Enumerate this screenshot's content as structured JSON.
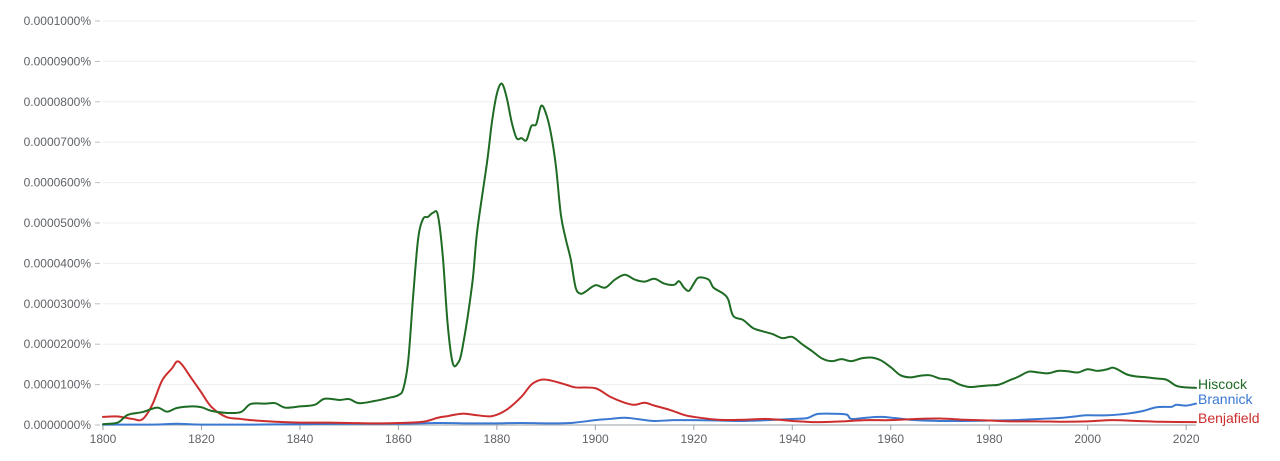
{
  "chart_data": {
    "type": "line",
    "title": "",
    "xlabel": "",
    "ylabel": "",
    "xlim": [
      1800,
      2022
    ],
    "ylim": [
      0,
      1e-06
    ],
    "grid": true,
    "legend_placement": "right, at line ends",
    "y_ticks": [
      {
        "value": 0.0,
        "label": "0.0000000%"
      },
      {
        "value": 1e-07,
        "label": "0.0000100%"
      },
      {
        "value": 2e-07,
        "label": "0.0000200%"
      },
      {
        "value": 3e-07,
        "label": "0.0000300%"
      },
      {
        "value": 4e-07,
        "label": "0.0000400%"
      },
      {
        "value": 5e-07,
        "label": "0.0000500%"
      },
      {
        "value": 6e-07,
        "label": "0.0000600%"
      },
      {
        "value": 7e-07,
        "label": "0.0000700%"
      },
      {
        "value": 8e-07,
        "label": "0.0000800%"
      },
      {
        "value": 9e-07,
        "label": "0.0000900%"
      },
      {
        "value": 1e-06,
        "label": "0.0001000%"
      }
    ],
    "x_ticks": [
      {
        "value": 1800,
        "label": "1800"
      },
      {
        "value": 1820,
        "label": "1820"
      },
      {
        "value": 1840,
        "label": "1840"
      },
      {
        "value": 1860,
        "label": "1860"
      },
      {
        "value": 1880,
        "label": "1880"
      },
      {
        "value": 1900,
        "label": "1900"
      },
      {
        "value": 1920,
        "label": "1920"
      },
      {
        "value": 1940,
        "label": "1940"
      },
      {
        "value": 1960,
        "label": "1960"
      },
      {
        "value": 1980,
        "label": "1980"
      },
      {
        "value": 2000,
        "label": "2000"
      },
      {
        "value": 2020,
        "label": "2020"
      }
    ],
    "series": [
      {
        "name": "Hiscock",
        "color": "#1e6b24",
        "points": [
          [
            1800,
            2e-09
          ],
          [
            1803,
            6e-09
          ],
          [
            1805,
            2.5e-08
          ],
          [
            1808,
            3.2e-08
          ],
          [
            1811,
            4.3e-08
          ],
          [
            1813,
            3.3e-08
          ],
          [
            1815,
            4.2e-08
          ],
          [
            1818,
            4.6e-08
          ],
          [
            1820,
            4.4e-08
          ],
          [
            1822,
            3.5e-08
          ],
          [
            1825,
            3e-08
          ],
          [
            1828,
            3.2e-08
          ],
          [
            1830,
            5.2e-08
          ],
          [
            1833,
            5.3e-08
          ],
          [
            1835,
            5.4e-08
          ],
          [
            1837,
            4.3e-08
          ],
          [
            1840,
            4.6e-08
          ],
          [
            1843,
            5e-08
          ],
          [
            1845,
            6.5e-08
          ],
          [
            1848,
            6.2e-08
          ],
          [
            1850,
            6.4e-08
          ],
          [
            1852,
            5.4e-08
          ],
          [
            1855,
            5.9e-08
          ],
          [
            1858,
            6.7e-08
          ],
          [
            1860,
            7.4e-08
          ],
          [
            1861,
            9e-08
          ],
          [
            1862,
            1.6e-07
          ],
          [
            1863,
            3.2e-07
          ],
          [
            1864,
            4.6e-07
          ],
          [
            1865,
            5.1e-07
          ],
          [
            1866,
            5.15e-07
          ],
          [
            1867,
            5.25e-07
          ],
          [
            1868,
            5.2e-07
          ],
          [
            1869,
            4.2e-07
          ],
          [
            1870,
            2.5e-07
          ],
          [
            1871,
            1.55e-07
          ],
          [
            1872,
            1.52e-07
          ],
          [
            1873,
            1.9e-07
          ],
          [
            1875,
            3.5e-07
          ],
          [
            1876,
            4.8e-07
          ],
          [
            1878,
            6.5e-07
          ],
          [
            1879,
            7.5e-07
          ],
          [
            1880,
            8.2e-07
          ],
          [
            1881,
            8.45e-07
          ],
          [
            1882,
            8.1e-07
          ],
          [
            1883,
            7.5e-07
          ],
          [
            1884,
            7.1e-07
          ],
          [
            1885,
            7.1e-07
          ],
          [
            1886,
            7.05e-07
          ],
          [
            1887,
            7.4e-07
          ],
          [
            1888,
            7.45e-07
          ],
          [
            1889,
            7.9e-07
          ],
          [
            1890,
            7.7e-07
          ],
          [
            1891,
            7.2e-07
          ],
          [
            1892,
            6.4e-07
          ],
          [
            1893,
            5.2e-07
          ],
          [
            1894,
            4.6e-07
          ],
          [
            1895,
            4.1e-07
          ],
          [
            1896,
            3.4e-07
          ],
          [
            1897,
            3.25e-07
          ],
          [
            1898,
            3.3e-07
          ],
          [
            1900,
            3.46e-07
          ],
          [
            1902,
            3.4e-07
          ],
          [
            1904,
            3.6e-07
          ],
          [
            1906,
            3.72e-07
          ],
          [
            1908,
            3.6e-07
          ],
          [
            1910,
            3.55e-07
          ],
          [
            1912,
            3.62e-07
          ],
          [
            1914,
            3.5e-07
          ],
          [
            1916,
            3.47e-07
          ],
          [
            1917,
            3.56e-07
          ],
          [
            1918,
            3.4e-07
          ],
          [
            1919,
            3.32e-07
          ],
          [
            1920,
            3.5e-07
          ],
          [
            1921,
            3.65e-07
          ],
          [
            1923,
            3.6e-07
          ],
          [
            1924,
            3.4e-07
          ],
          [
            1926,
            3.25e-07
          ],
          [
            1927,
            3.1e-07
          ],
          [
            1928,
            2.7e-07
          ],
          [
            1930,
            2.6e-07
          ],
          [
            1932,
            2.4e-07
          ],
          [
            1934,
            2.32e-07
          ],
          [
            1936,
            2.25e-07
          ],
          [
            1938,
            2.15e-07
          ],
          [
            1940,
            2.18e-07
          ],
          [
            1942,
            2e-07
          ],
          [
            1944,
            1.83e-07
          ],
          [
            1946,
            1.65e-07
          ],
          [
            1948,
            1.58e-07
          ],
          [
            1950,
            1.63e-07
          ],
          [
            1952,
            1.58e-07
          ],
          [
            1954,
            1.65e-07
          ],
          [
            1956,
            1.67e-07
          ],
          [
            1958,
            1.6e-07
          ],
          [
            1960,
            1.43e-07
          ],
          [
            1962,
            1.23e-07
          ],
          [
            1964,
            1.18e-07
          ],
          [
            1966,
            1.22e-07
          ],
          [
            1968,
            1.23e-07
          ],
          [
            1970,
            1.15e-07
          ],
          [
            1972,
            1.12e-07
          ],
          [
            1974,
            1e-07
          ],
          [
            1976,
            9.4e-08
          ],
          [
            1978,
            9.6e-08
          ],
          [
            1980,
            9.8e-08
          ],
          [
            1982,
            1e-07
          ],
          [
            1984,
            1.1e-07
          ],
          [
            1986,
            1.2e-07
          ],
          [
            1988,
            1.32e-07
          ],
          [
            1990,
            1.3e-07
          ],
          [
            1992,
            1.28e-07
          ],
          [
            1994,
            1.34e-07
          ],
          [
            1996,
            1.33e-07
          ],
          [
            1998,
            1.3e-07
          ],
          [
            2000,
            1.38e-07
          ],
          [
            2002,
            1.34e-07
          ],
          [
            2004,
            1.38e-07
          ],
          [
            2005,
            1.42e-07
          ],
          [
            2006,
            1.38e-07
          ],
          [
            2008,
            1.25e-07
          ],
          [
            2010,
            1.2e-07
          ],
          [
            2012,
            1.18e-07
          ],
          [
            2014,
            1.15e-07
          ],
          [
            2016,
            1.12e-07
          ],
          [
            2018,
            9.7e-08
          ],
          [
            2020,
            9.3e-08
          ],
          [
            2022,
            9.2e-08
          ]
        ]
      },
      {
        "name": "Brannick",
        "color": "#3a78d1",
        "points": [
          [
            1800,
            1e-09
          ],
          [
            1810,
            1e-09
          ],
          [
            1815,
            3e-09
          ],
          [
            1820,
            1e-09
          ],
          [
            1830,
            1e-09
          ],
          [
            1840,
            2e-09
          ],
          [
            1850,
            3e-09
          ],
          [
            1860,
            3e-09
          ],
          [
            1868,
            5e-09
          ],
          [
            1875,
            4e-09
          ],
          [
            1880,
            4e-09
          ],
          [
            1885,
            5e-09
          ],
          [
            1890,
            4e-09
          ],
          [
            1895,
            5e-09
          ],
          [
            1900,
            1.2e-08
          ],
          [
            1903,
            1.5e-08
          ],
          [
            1906,
            1.8e-08
          ],
          [
            1909,
            1.4e-08
          ],
          [
            1912,
            1e-08
          ],
          [
            1916,
            1.2e-08
          ],
          [
            1920,
            1.2e-08
          ],
          [
            1925,
            1.1e-08
          ],
          [
            1930,
            1e-08
          ],
          [
            1935,
            1.2e-08
          ],
          [
            1940,
            1.5e-08
          ],
          [
            1943,
            1.7e-08
          ],
          [
            1945,
            2.7e-08
          ],
          [
            1948,
            2.8e-08
          ],
          [
            1951,
            2.6e-08
          ],
          [
            1952,
            1.5e-08
          ],
          [
            1955,
            1.8e-08
          ],
          [
            1958,
            2e-08
          ],
          [
            1961,
            1.7e-08
          ],
          [
            1965,
            1.2e-08
          ],
          [
            1970,
            1e-08
          ],
          [
            1975,
            1e-08
          ],
          [
            1980,
            1.1e-08
          ],
          [
            1985,
            1.2e-08
          ],
          [
            1990,
            1.5e-08
          ],
          [
            1995,
            1.8e-08
          ],
          [
            1998,
            2.2e-08
          ],
          [
            2000,
            2.4e-08
          ],
          [
            2004,
            2.4e-08
          ],
          [
            2008,
            2.8e-08
          ],
          [
            2011,
            3.4e-08
          ],
          [
            2014,
            4.4e-08
          ],
          [
            2017,
            4.5e-08
          ],
          [
            2018,
            5e-08
          ],
          [
            2020,
            4.8e-08
          ],
          [
            2022,
            5.3e-08
          ]
        ]
      },
      {
        "name": "Benjafield",
        "color": "#cc2d2d",
        "points": [
          [
            1800,
            2e-08
          ],
          [
            1803,
            2.1e-08
          ],
          [
            1806,
            1.5e-08
          ],
          [
            1808,
            1.4e-08
          ],
          [
            1810,
            5e-08
          ],
          [
            1812,
            1.1e-07
          ],
          [
            1814,
            1.4e-07
          ],
          [
            1815,
            1.57e-07
          ],
          [
            1816,
            1.5e-07
          ],
          [
            1818,
            1.15e-07
          ],
          [
            1820,
            8e-08
          ],
          [
            1822,
            4.5e-08
          ],
          [
            1825,
            2e-08
          ],
          [
            1828,
            1.5e-08
          ],
          [
            1830,
            1.2e-08
          ],
          [
            1835,
            8e-09
          ],
          [
            1840,
            6e-09
          ],
          [
            1845,
            6e-09
          ],
          [
            1850,
            5e-09
          ],
          [
            1855,
            4e-09
          ],
          [
            1860,
            5e-09
          ],
          [
            1865,
            8e-09
          ],
          [
            1868,
            1.8e-08
          ],
          [
            1870,
            2.2e-08
          ],
          [
            1873,
            2.8e-08
          ],
          [
            1876,
            2.4e-08
          ],
          [
            1879,
            2.2e-08
          ],
          [
            1882,
            3.8e-08
          ],
          [
            1885,
            7e-08
          ],
          [
            1887,
            1e-07
          ],
          [
            1889,
            1.12e-07
          ],
          [
            1891,
            1.1e-07
          ],
          [
            1894,
            1e-07
          ],
          [
            1896,
            9.3e-08
          ],
          [
            1900,
            9.1e-08
          ],
          [
            1903,
            7e-08
          ],
          [
            1906,
            5.5e-08
          ],
          [
            1908,
            5e-08
          ],
          [
            1910,
            5.5e-08
          ],
          [
            1912,
            4.8e-08
          ],
          [
            1915,
            3.8e-08
          ],
          [
            1918,
            2.5e-08
          ],
          [
            1920,
            2e-08
          ],
          [
            1925,
            1.3e-08
          ],
          [
            1930,
            1.3e-08
          ],
          [
            1935,
            1.5e-08
          ],
          [
            1940,
            1e-08
          ],
          [
            1945,
            7e-09
          ],
          [
            1950,
            9e-09
          ],
          [
            1955,
            1.2e-08
          ],
          [
            1960,
            1.2e-08
          ],
          [
            1965,
            1.5e-08
          ],
          [
            1970,
            1.6e-08
          ],
          [
            1975,
            1.3e-08
          ],
          [
            1980,
            1.1e-08
          ],
          [
            1985,
            9e-09
          ],
          [
            1990,
            9e-09
          ],
          [
            1995,
            8e-09
          ],
          [
            2000,
            9e-09
          ],
          [
            2005,
            1.2e-08
          ],
          [
            2010,
            1e-08
          ],
          [
            2015,
            8e-09
          ],
          [
            2022,
            7e-09
          ]
        ]
      }
    ]
  }
}
